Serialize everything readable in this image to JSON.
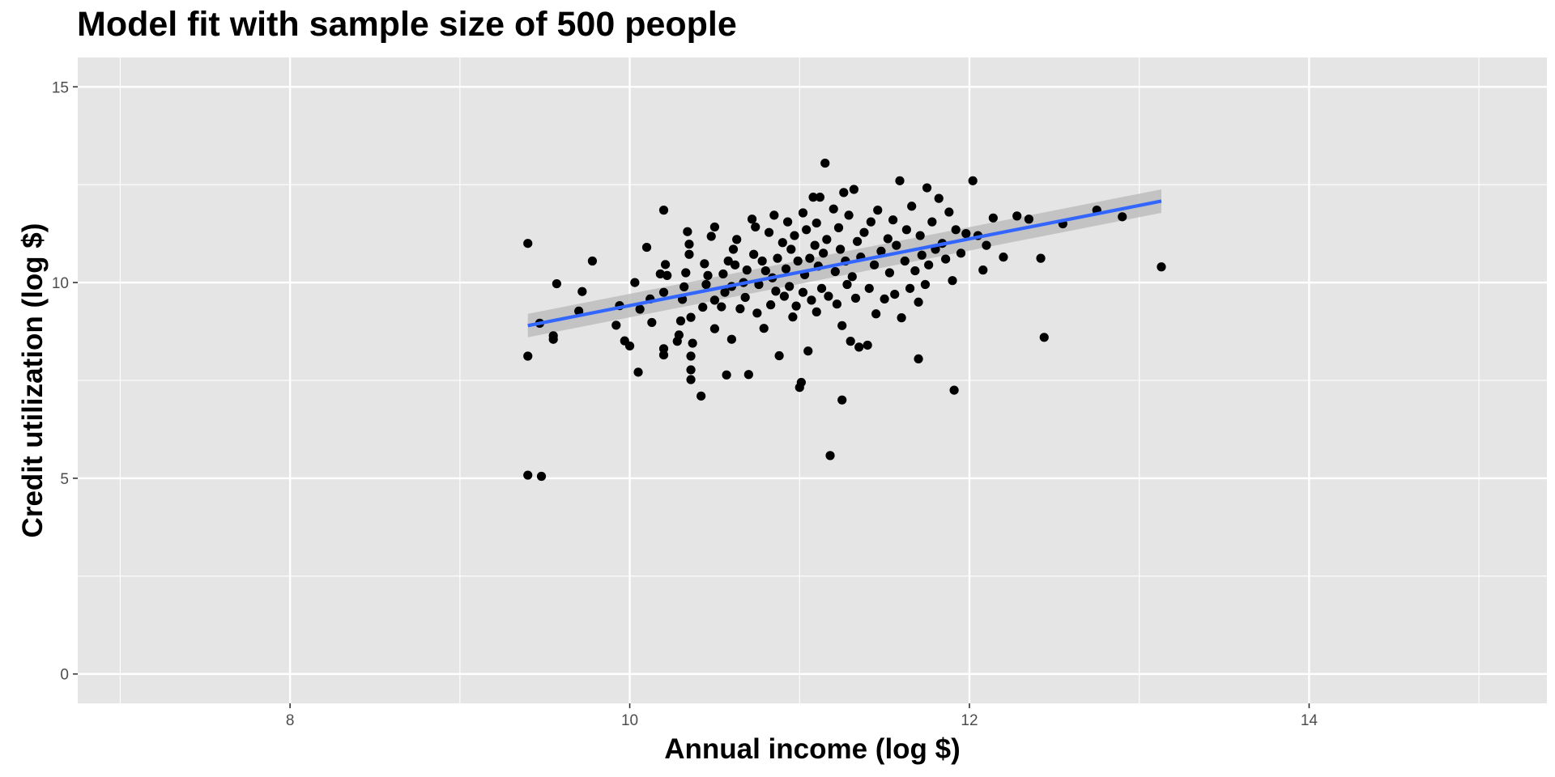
{
  "chart_data": {
    "type": "scatter",
    "title": "Model fit with sample size of 500 people",
    "xlabel": "Annual income (log $)",
    "ylabel": "Credit utilization (log $)",
    "xlim": [
      6.75,
      15.4
    ],
    "ylim": [
      -0.75,
      15.75
    ],
    "x_ticks": [
      8,
      10,
      12,
      14
    ],
    "y_ticks": [
      0,
      5,
      10,
      15
    ],
    "x_tick_labels": [
      "8",
      "10",
      "12",
      "14"
    ],
    "y_tick_labels": [
      "0",
      "5",
      "10",
      "15"
    ],
    "grid": true,
    "legend": "none",
    "colors": {
      "panel": "#e5e5e5",
      "grid": "#ffffff",
      "points": "#000000",
      "fit_line": "#3366ff",
      "ribbon": "#bdbdbd"
    },
    "fit_line": {
      "x": [
        9.4,
        13.13
      ],
      "y": [
        8.9,
        12.08
      ],
      "ci_lower": [
        8.6,
        11.78
      ],
      "ci_upper": [
        9.2,
        12.38
      ]
    },
    "points": [
      [
        9.4,
        11.0
      ],
      [
        9.4,
        8.12
      ],
      [
        9.4,
        5.08
      ],
      [
        9.47,
        8.96
      ],
      [
        9.48,
        5.05
      ],
      [
        9.55,
        8.64
      ],
      [
        9.55,
        8.55
      ],
      [
        9.57,
        9.97
      ],
      [
        9.7,
        9.27
      ],
      [
        9.72,
        9.77
      ],
      [
        9.78,
        10.55
      ],
      [
        9.92,
        8.91
      ],
      [
        9.94,
        9.41
      ],
      [
        9.97,
        8.51
      ],
      [
        10.0,
        8.38
      ],
      [
        10.03,
        10.0
      ],
      [
        10.05,
        7.71
      ],
      [
        10.06,
        9.32
      ],
      [
        10.1,
        10.9
      ],
      [
        10.12,
        9.58
      ],
      [
        10.13,
        8.98
      ],
      [
        10.18,
        10.22
      ],
      [
        10.21,
        10.46
      ],
      [
        10.22,
        10.18
      ],
      [
        10.2,
        9.75
      ],
      [
        10.2,
        8.31
      ],
      [
        10.2,
        8.15
      ],
      [
        10.2,
        11.85
      ],
      [
        10.3,
        9.02
      ],
      [
        10.31,
        9.57
      ],
      [
        10.29,
        8.66
      ],
      [
        10.28,
        8.5
      ],
      [
        10.32,
        9.89
      ],
      [
        10.33,
        10.25
      ],
      [
        10.35,
        10.72
      ],
      [
        10.35,
        10.98
      ],
      [
        10.34,
        11.3
      ],
      [
        10.36,
        9.11
      ],
      [
        10.37,
        8.45
      ],
      [
        10.36,
        8.12
      ],
      [
        10.36,
        7.77
      ],
      [
        10.36,
        7.52
      ],
      [
        10.42,
        7.1
      ],
      [
        10.43,
        9.37
      ],
      [
        10.44,
        10.48
      ],
      [
        10.45,
        9.95
      ],
      [
        10.46,
        10.18
      ],
      [
        10.48,
        11.18
      ],
      [
        10.5,
        11.42
      ],
      [
        10.5,
        8.82
      ],
      [
        10.5,
        9.55
      ],
      [
        10.54,
        9.38
      ],
      [
        10.55,
        10.22
      ],
      [
        10.56,
        9.75
      ],
      [
        10.57,
        7.64
      ],
      [
        10.58,
        10.55
      ],
      [
        10.6,
        8.55
      ],
      [
        10.6,
        9.9
      ],
      [
        10.61,
        10.85
      ],
      [
        10.62,
        10.45
      ],
      [
        10.63,
        11.1
      ],
      [
        10.65,
        9.33
      ],
      [
        10.67,
        10.0
      ],
      [
        10.68,
        9.62
      ],
      [
        10.69,
        10.32
      ],
      [
        10.7,
        7.65
      ],
      [
        10.72,
        11.62
      ],
      [
        10.73,
        10.72
      ],
      [
        10.74,
        11.42
      ],
      [
        10.75,
        9.22
      ],
      [
        10.76,
        9.95
      ],
      [
        10.78,
        10.55
      ],
      [
        10.79,
        8.83
      ],
      [
        10.8,
        10.3
      ],
      [
        10.82,
        11.28
      ],
      [
        10.83,
        9.43
      ],
      [
        10.84,
        10.12
      ],
      [
        10.85,
        11.72
      ],
      [
        10.86,
        9.78
      ],
      [
        10.87,
        10.62
      ],
      [
        10.88,
        8.13
      ],
      [
        10.9,
        11.02
      ],
      [
        10.91,
        9.65
      ],
      [
        10.92,
        10.35
      ],
      [
        10.93,
        11.55
      ],
      [
        10.94,
        9.9
      ],
      [
        10.95,
        10.85
      ],
      [
        10.96,
        9.12
      ],
      [
        10.97,
        11.2
      ],
      [
        10.98,
        9.4
      ],
      [
        10.99,
        10.55
      ],
      [
        11.0,
        7.32
      ],
      [
        11.01,
        7.45
      ],
      [
        11.02,
        11.78
      ],
      [
        11.02,
        9.75
      ],
      [
        11.03,
        10.2
      ],
      [
        11.04,
        11.35
      ],
      [
        11.05,
        8.25
      ],
      [
        11.06,
        10.62
      ],
      [
        11.07,
        9.55
      ],
      [
        11.08,
        12.18
      ],
      [
        11.09,
        10.95
      ],
      [
        11.1,
        11.52
      ],
      [
        11.1,
        9.25
      ],
      [
        11.11,
        10.42
      ],
      [
        11.12,
        12.18
      ],
      [
        11.13,
        9.85
      ],
      [
        11.14,
        10.75
      ],
      [
        11.15,
        13.05
      ],
      [
        11.16,
        11.1
      ],
      [
        11.17,
        9.65
      ],
      [
        11.18,
        5.58
      ],
      [
        11.2,
        11.88
      ],
      [
        11.21,
        10.28
      ],
      [
        11.22,
        9.45
      ],
      [
        11.23,
        11.4
      ],
      [
        11.24,
        10.85
      ],
      [
        11.25,
        7.0
      ],
      [
        11.25,
        8.9
      ],
      [
        11.26,
        12.3
      ],
      [
        11.27,
        10.55
      ],
      [
        11.28,
        9.95
      ],
      [
        11.29,
        11.72
      ],
      [
        11.3,
        8.5
      ],
      [
        11.31,
        10.15
      ],
      [
        11.32,
        12.38
      ],
      [
        11.33,
        9.6
      ],
      [
        11.34,
        11.05
      ],
      [
        11.35,
        8.35
      ],
      [
        11.36,
        10.65
      ],
      [
        11.38,
        11.28
      ],
      [
        11.4,
        8.4
      ],
      [
        11.41,
        9.85
      ],
      [
        11.42,
        11.55
      ],
      [
        11.44,
        10.45
      ],
      [
        11.45,
        9.2
      ],
      [
        11.46,
        11.85
      ],
      [
        11.48,
        10.8
      ],
      [
        11.5,
        9.58
      ],
      [
        11.52,
        11.12
      ],
      [
        11.53,
        10.25
      ],
      [
        11.55,
        11.6
      ],
      [
        11.56,
        9.7
      ],
      [
        11.57,
        10.95
      ],
      [
        11.59,
        12.6
      ],
      [
        11.6,
        9.1
      ],
      [
        11.62,
        10.55
      ],
      [
        11.63,
        11.35
      ],
      [
        11.65,
        9.85
      ],
      [
        11.66,
        11.95
      ],
      [
        11.68,
        10.3
      ],
      [
        11.7,
        8.05
      ],
      [
        11.7,
        9.5
      ],
      [
        11.71,
        11.2
      ],
      [
        11.72,
        10.7
      ],
      [
        11.74,
        9.95
      ],
      [
        11.75,
        12.42
      ],
      [
        11.76,
        10.45
      ],
      [
        11.78,
        11.55
      ],
      [
        11.8,
        10.85
      ],
      [
        11.82,
        12.15
      ],
      [
        11.84,
        11.0
      ],
      [
        11.86,
        10.6
      ],
      [
        11.88,
        11.8
      ],
      [
        11.9,
        10.05
      ],
      [
        11.91,
        7.25
      ],
      [
        11.92,
        11.35
      ],
      [
        11.95,
        10.75
      ],
      [
        11.98,
        11.25
      ],
      [
        12.02,
        12.6
      ],
      [
        12.05,
        11.2
      ],
      [
        12.08,
        10.32
      ],
      [
        12.1,
        10.95
      ],
      [
        12.14,
        11.65
      ],
      [
        12.2,
        10.65
      ],
      [
        12.28,
        11.7
      ],
      [
        12.35,
        11.62
      ],
      [
        12.42,
        10.62
      ],
      [
        12.44,
        8.6
      ],
      [
        12.55,
        11.5
      ],
      [
        12.75,
        11.85
      ],
      [
        12.9,
        11.68
      ],
      [
        13.13,
        10.4
      ]
    ]
  }
}
